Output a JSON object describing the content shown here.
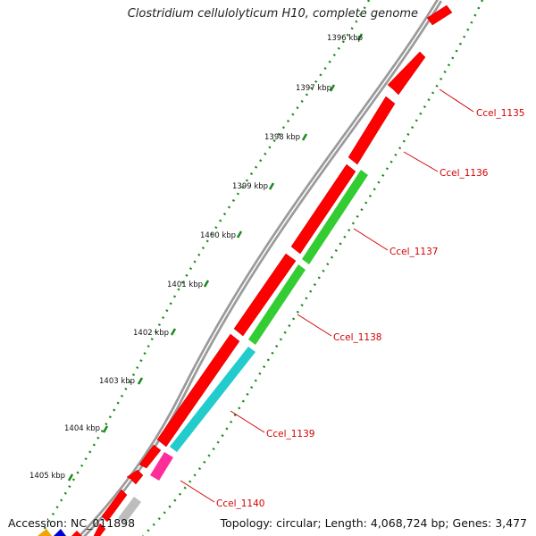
{
  "title": "Clostridium cellulolyticum H10, complete genome",
  "footer": {
    "accession": "Accession: NC_011898",
    "summary": "Topology: circular; Length: 4,068,724 bp; Genes: 3,477"
  },
  "colors": {
    "gene_red": "#ff0000",
    "gene_green": "#33cc33",
    "gene_cyan": "#22cccc",
    "gene_pink": "#ff2d9a",
    "gene_grey": "#bdbdbd",
    "gene_orange": "#f4a300",
    "gene_blue": "#0000cc",
    "tick_green": "#1a8a1a",
    "label_red": "#d40000",
    "backbone": "#999999"
  },
  "scale": {
    "kbp_labels": [
      "1396 kbp",
      "1397 kbp",
      "1398 kbp",
      "1399 kbp",
      "1400 kbp",
      "1401 kbp",
      "1402 kbp",
      "1403 kbp",
      "1404 kbp",
      "1405 kbp"
    ]
  },
  "gene_labels": [
    "Ccel_1135",
    "Ccel_1136",
    "Ccel_1137",
    "Ccel_1138",
    "Ccel_1139",
    "Ccel_1140"
  ]
}
